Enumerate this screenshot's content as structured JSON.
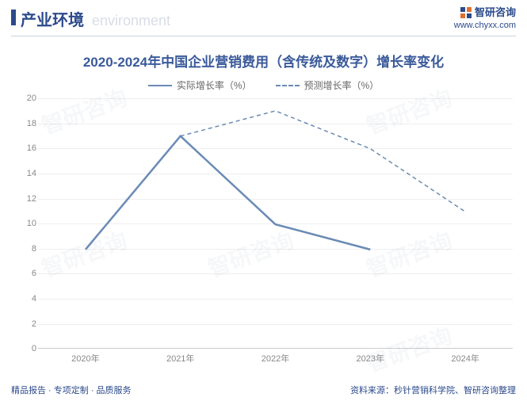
{
  "header": {
    "title_cn": "产业环境",
    "title_en": "environment",
    "brand_name": "智研咨询",
    "brand_url": "www.chyxx.com",
    "bar_color": "#2b4a8b",
    "title_color": "#2b4a8b"
  },
  "chart": {
    "type": "line",
    "title": "2020-2024年中国企业营销费用（含传统及数字）增长率变化",
    "title_color": "#3a5a9a",
    "title_fontsize": 17,
    "background_color": "#ffffff",
    "grid_color": "#eeeeee",
    "axis_color": "#cccccc",
    "ylim": [
      0,
      20
    ],
    "ytick_step": 2,
    "yticks": [
      0,
      2,
      4,
      6,
      8,
      10,
      12,
      14,
      16,
      18,
      20
    ],
    "categories": [
      "2020年",
      "2021年",
      "2022年",
      "2023年",
      "2024年"
    ],
    "series": [
      {
        "name": "实际增长率（%）",
        "values": [
          8,
          17,
          10,
          8,
          null
        ],
        "color": "#6b8bb5",
        "line_width": 2.5,
        "dash": "solid"
      },
      {
        "name": "预测增长率（%）",
        "values": [
          null,
          17,
          19,
          16,
          11
        ],
        "color": "#6b8bb5",
        "line_width": 1.5,
        "dash": "dashed"
      }
    ],
    "label_fontsize": 11,
    "label_color": "#888888"
  },
  "footer": {
    "left": "精品报告 · 专项定制 · 品质服务",
    "right": "资料来源：秒针营销科学院、智研咨询整理"
  },
  "watermark_text": "智研咨询"
}
